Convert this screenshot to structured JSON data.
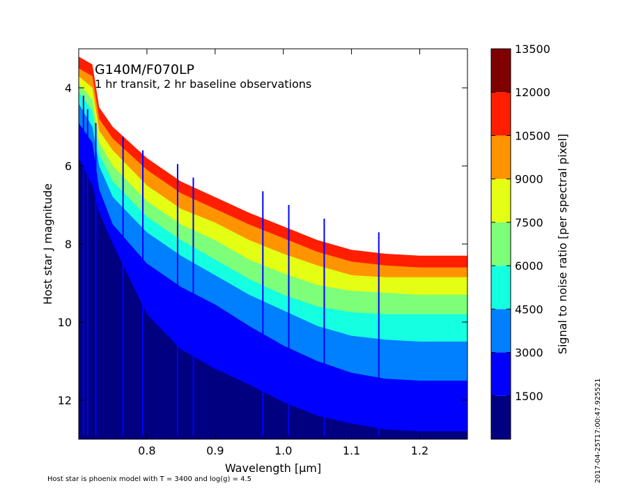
{
  "chart_data": {
    "type": "heatmap",
    "title": "G140M/F070LP",
    "subtitle": "1 hr transit, 2 hr baseline observations",
    "xlabel": "Wavelength [μm]",
    "ylabel": "Host star J magnitude",
    "xlim": [
      0.7,
      1.27
    ],
    "ylim": [
      13.0,
      3.0
    ],
    "y_inverted": true,
    "x_ticks": [
      0.8,
      0.9,
      1.0,
      1.1,
      1.2
    ],
    "x_tick_labels": [
      "0.8",
      "0.9",
      "1.0",
      "1.1",
      "1.2"
    ],
    "y_ticks": [
      4,
      6,
      8,
      10,
      12
    ],
    "y_tick_labels": [
      "4",
      "6",
      "8",
      "10",
      "12"
    ],
    "colorbar": {
      "label": "Signal to noise ratio [per spectral pixel]",
      "levels": [
        0,
        1500,
        3000,
        4500,
        6000,
        7500,
        9000,
        10500,
        12000,
        13500
      ],
      "tick_values": [
        1500,
        3000,
        4500,
        6000,
        7500,
        9000,
        10500,
        12000,
        13500
      ],
      "tick_labels": [
        "1500",
        "3000",
        "4500",
        "6000",
        "7500",
        "9000",
        "10500",
        "12000",
        "13500"
      ],
      "colors": [
        "#000080",
        "#0000ff",
        "#0080ff",
        "#15ffe1",
        "#7dff7a",
        "#e4ff13",
        "#ff9400",
        "#ff1e00",
        "#800000"
      ]
    },
    "contours": {
      "x": [
        0.7,
        0.72,
        0.73,
        0.75,
        0.8,
        0.85,
        0.9,
        0.95,
        1.0,
        1.05,
        1.1,
        1.15,
        1.2,
        1.27
      ],
      "boundaries": [
        {
          "level": 10500,
          "y": [
            3.5,
            3.7,
            4.8,
            5.3,
            6.1,
            6.7,
            7.1,
            7.5,
            7.85,
            8.2,
            8.45,
            8.55,
            8.6,
            8.6
          ]
        },
        {
          "level": 9000,
          "y": [
            3.7,
            4.0,
            5.1,
            5.6,
            6.5,
            7.1,
            7.45,
            7.9,
            8.25,
            8.55,
            8.8,
            8.85,
            8.85,
            8.85
          ]
        },
        {
          "level": 7500,
          "y": [
            3.9,
            4.3,
            5.4,
            6.0,
            6.9,
            7.5,
            7.9,
            8.4,
            8.75,
            9.05,
            9.2,
            9.25,
            9.3,
            9.3
          ]
        },
        {
          "level": 6000,
          "y": [
            4.1,
            4.6,
            5.7,
            6.4,
            7.3,
            7.9,
            8.4,
            8.9,
            9.3,
            9.6,
            9.75,
            9.8,
            9.8,
            9.8
          ]
        },
        {
          "level": 4500,
          "y": [
            4.4,
            5.0,
            6.0,
            6.8,
            7.7,
            8.3,
            8.8,
            9.3,
            9.7,
            10.1,
            10.35,
            10.45,
            10.5,
            10.5
          ]
        },
        {
          "level": 3000,
          "y": [
            4.9,
            5.4,
            6.6,
            7.5,
            8.5,
            9.1,
            9.55,
            10.1,
            10.6,
            11.0,
            11.3,
            11.45,
            11.5,
            11.5
          ]
        },
        {
          "level": 1500,
          "y": [
            5.8,
            6.5,
            7.2,
            8.0,
            9.8,
            10.7,
            11.2,
            11.6,
            12.05,
            12.4,
            12.6,
            12.75,
            12.8,
            12.8
          ]
        }
      ]
    },
    "features_um": [
      0.707,
      0.713,
      0.725,
      0.765,
      0.794,
      0.845,
      0.868,
      0.97,
      1.008,
      1.06,
      1.14
    ]
  },
  "footer_note": "Host star is phoenix model with T = 3400 and log(g) = 4.5",
  "timestamp": "2017-04-25T17:00:47.925521"
}
